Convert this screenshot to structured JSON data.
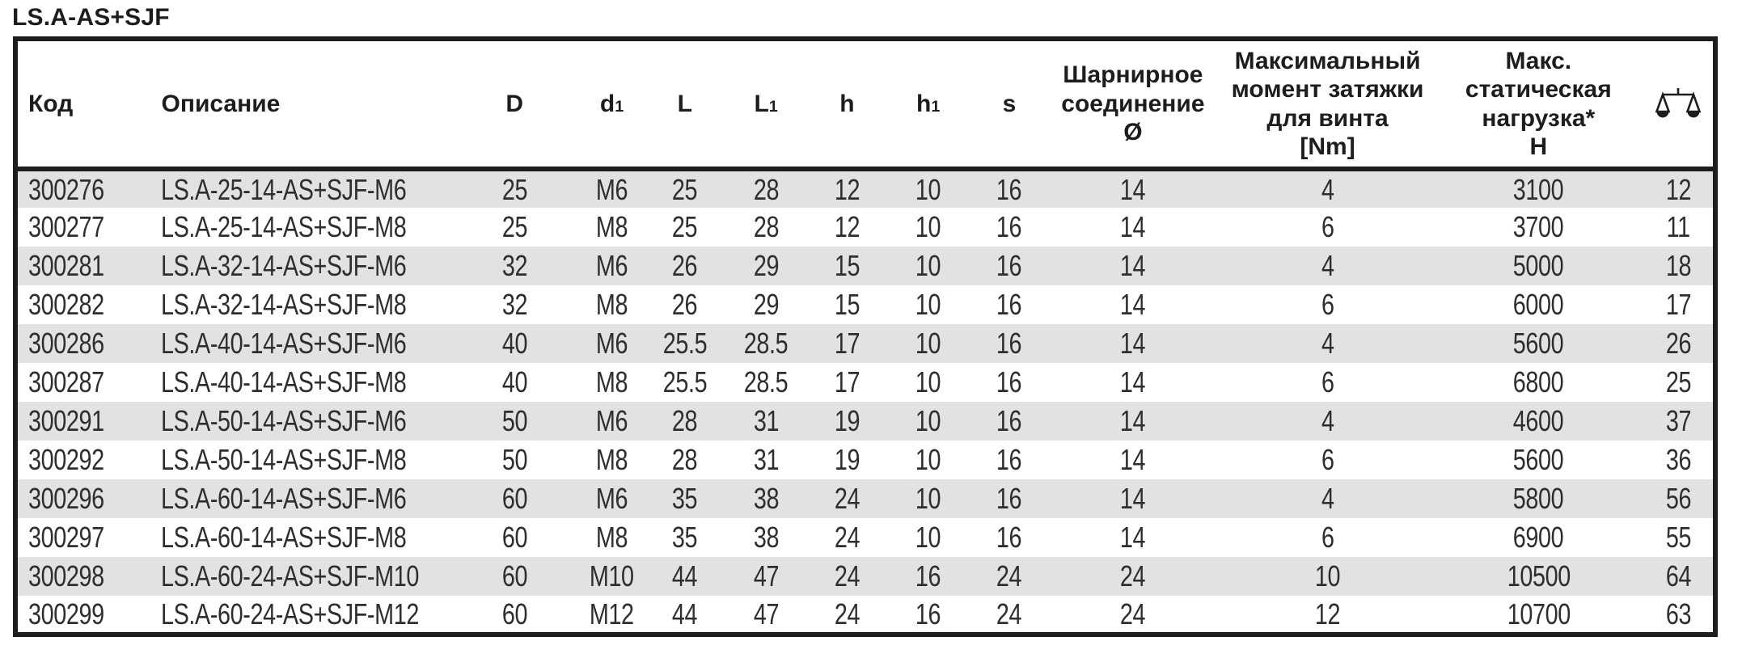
{
  "title": "LS.A-AS+SJF",
  "colors": {
    "border": "#1d1d1b",
    "row_shade": "#e2e2e2",
    "text": "#1d1d1b"
  },
  "table": {
    "columns": [
      {
        "key": "code",
        "label": "Код"
      },
      {
        "key": "description",
        "label": "Описание"
      },
      {
        "key": "D",
        "label": "D"
      },
      {
        "key": "d1",
        "label": "d",
        "sub": "1"
      },
      {
        "key": "L",
        "label": "L"
      },
      {
        "key": "L1",
        "label": "L",
        "sub": "1"
      },
      {
        "key": "h",
        "label": "h"
      },
      {
        "key": "h1",
        "label": "h",
        "sub": "1"
      },
      {
        "key": "s",
        "label": "s"
      },
      {
        "key": "hinge",
        "label": "Шарнирное\nсоединение\nØ"
      },
      {
        "key": "torque",
        "label": "Максимальный\nмомент затяжки\nдля винта\n[Nm]"
      },
      {
        "key": "load",
        "label": "Макс.\nстатическая\nнагрузка*\nН"
      },
      {
        "key": "weight",
        "icon": "scale-icon"
      }
    ],
    "rows": [
      [
        "300276",
        "LS.A-25-14-AS+SJF-M6",
        "25",
        "M6",
        "25",
        "28",
        "12",
        "10",
        "16",
        "14",
        "4",
        "3100",
        "12"
      ],
      [
        "300277",
        "LS.A-25-14-AS+SJF-M8",
        "25",
        "M8",
        "25",
        "28",
        "12",
        "10",
        "16",
        "14",
        "6",
        "3700",
        "11"
      ],
      [
        "300281",
        "LS.A-32-14-AS+SJF-M6",
        "32",
        "M6",
        "26",
        "29",
        "15",
        "10",
        "16",
        "14",
        "4",
        "5000",
        "18"
      ],
      [
        "300282",
        "LS.A-32-14-AS+SJF-M8",
        "32",
        "M8",
        "26",
        "29",
        "15",
        "10",
        "16",
        "14",
        "6",
        "6000",
        "17"
      ],
      [
        "300286",
        "LS.A-40-14-AS+SJF-M6",
        "40",
        "M6",
        "25.5",
        "28.5",
        "17",
        "10",
        "16",
        "14",
        "4",
        "5600",
        "26"
      ],
      [
        "300287",
        "LS.A-40-14-AS+SJF-M8",
        "40",
        "M8",
        "25.5",
        "28.5",
        "17",
        "10",
        "16",
        "14",
        "6",
        "6800",
        "25"
      ],
      [
        "300291",
        "LS.A-50-14-AS+SJF-M6",
        "50",
        "M6",
        "28",
        "31",
        "19",
        "10",
        "16",
        "14",
        "4",
        "4600",
        "37"
      ],
      [
        "300292",
        "LS.A-50-14-AS+SJF-M8",
        "50",
        "M8",
        "28",
        "31",
        "19",
        "10",
        "16",
        "14",
        "6",
        "5600",
        "36"
      ],
      [
        "300296",
        "LS.A-60-14-AS+SJF-M6",
        "60",
        "M6",
        "35",
        "38",
        "24",
        "10",
        "16",
        "14",
        "4",
        "5800",
        "56"
      ],
      [
        "300297",
        "LS.A-60-14-AS+SJF-M8",
        "60",
        "M8",
        "35",
        "38",
        "24",
        "10",
        "16",
        "14",
        "6",
        "6900",
        "55"
      ],
      [
        "300298",
        "LS.A-60-24-AS+SJF-M10",
        "60",
        "M10",
        "44",
        "47",
        "24",
        "16",
        "24",
        "24",
        "10",
        "10500",
        "64"
      ],
      [
        "300299",
        "LS.A-60-24-AS+SJF-M12",
        "60",
        "M12",
        "44",
        "47",
        "24",
        "16",
        "24",
        "24",
        "12",
        "10700",
        "63"
      ]
    ]
  }
}
